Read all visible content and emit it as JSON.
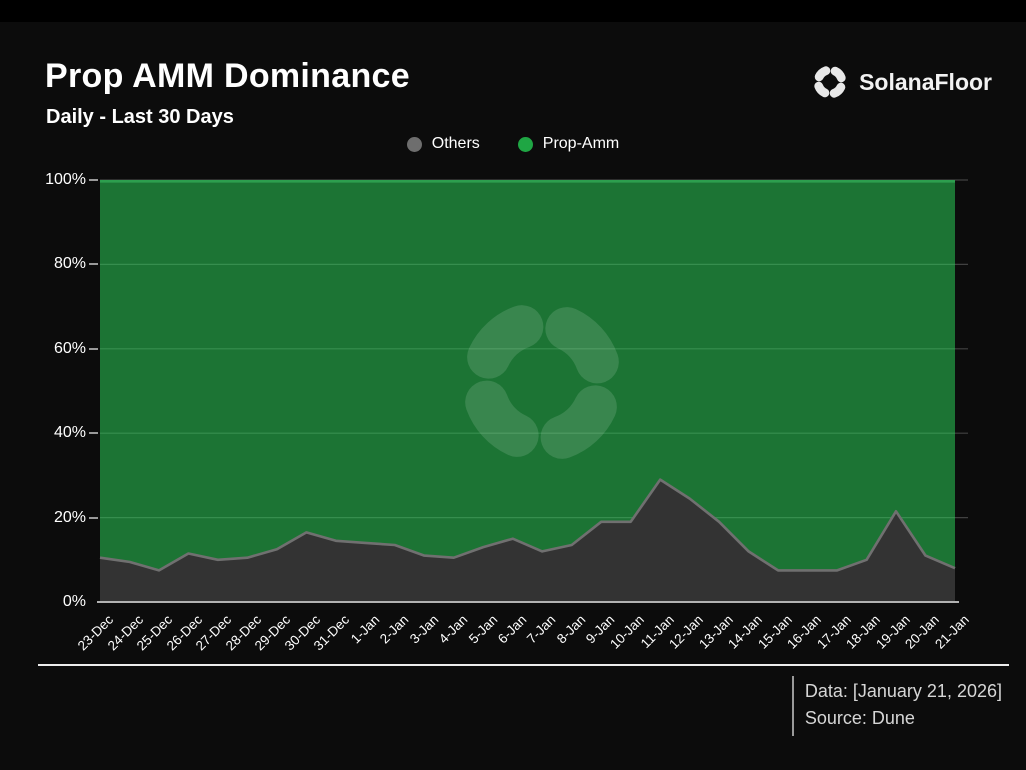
{
  "header": {
    "title": "Prop AMM Dominance",
    "subtitle": "Daily - Last 30 Days",
    "brand": "SolanaFloor",
    "brand_icon": "pinwheel-logo",
    "brand_icon_color": "#e8e8e8"
  },
  "legend": [
    {
      "label": "Others",
      "color": "#6e6e6e"
    },
    {
      "label": "Prop-Amm",
      "color": "#1fa644"
    }
  ],
  "y_axis": {
    "labels": [
      "100%",
      "80%",
      "60%",
      "40%",
      "20%",
      "0%"
    ],
    "values": [
      100,
      80,
      60,
      40,
      20,
      0
    ]
  },
  "footer": {
    "data_label": "Data: [January 21, 2026]",
    "source_label": "Source: Dune"
  },
  "chart_data": {
    "type": "area",
    "stacked_percent": true,
    "title": "Prop AMM Dominance",
    "subtitle": "Daily - Last 30 Days",
    "xlabel": "",
    "ylabel": "",
    "ylim": [
      0,
      100
    ],
    "grid": true,
    "legend_position": "top-center",
    "x": [
      "23-Dec",
      "24-Dec",
      "25-Dec",
      "26-Dec",
      "27-Dec",
      "28-Dec",
      "29-Dec",
      "30-Dec",
      "31-Dec",
      "1-Jan",
      "2-Jan",
      "3-Jan",
      "4-Jan",
      "5-Jan",
      "6-Jan",
      "7-Jan",
      "8-Jan",
      "9-Jan",
      "10-Jan",
      "11-Jan",
      "12-Jan",
      "13-Jan",
      "14-Jan",
      "15-Jan",
      "16-Jan",
      "17-Jan",
      "18-Jan",
      "19-Jan",
      "20-Jan",
      "21-Jan"
    ],
    "series": [
      {
        "name": "Others",
        "fill_color": "#333333",
        "line_color": "#707070",
        "values": [
          10.5,
          9.5,
          7.5,
          11.5,
          10,
          10.5,
          12.5,
          16.5,
          14.5,
          14,
          13.5,
          11,
          10.5,
          13,
          15,
          12,
          13.5,
          19,
          19,
          29,
          24.5,
          19,
          12,
          7.5,
          7.5,
          7.5,
          10,
          21.5,
          11,
          8
        ]
      },
      {
        "name": "Prop-Amm",
        "fill_color": "rgba(44,220,92,0.5)",
        "fill_color_flat": "#176f2f",
        "line_color": "#2d9e4e",
        "values": [
          89.5,
          90.5,
          92.5,
          88.5,
          90,
          89.5,
          87.5,
          83.5,
          85.5,
          86,
          86.5,
          89,
          89.5,
          87,
          85,
          88,
          86.5,
          81,
          81,
          71,
          75.5,
          81,
          88,
          92.5,
          92.5,
          92.5,
          90,
          78.5,
          89,
          92
        ]
      }
    ],
    "grid_color": "rgba(255,255,255,0.22)",
    "watermark": {
      "icon": "pinwheel-logo",
      "color": "rgba(255,255,255,0.13)"
    }
  }
}
